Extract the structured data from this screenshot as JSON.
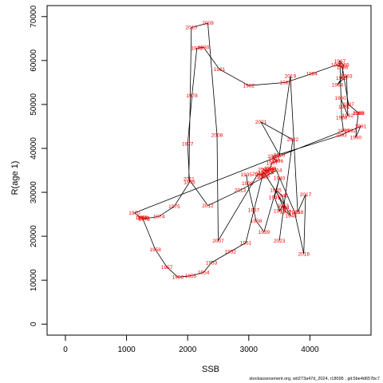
{
  "chart_data": {
    "type": "line",
    "title": "",
    "xlabel": "SSB",
    "ylabel": "R(age 1)",
    "xlim": [
      -300,
      5000
    ],
    "ylim": [
      -2500,
      72500
    ],
    "xticks": [
      0,
      1000,
      2000,
      3000,
      4000
    ],
    "yticks": [
      0,
      10000,
      20000,
      30000,
      40000,
      50000,
      60000,
      70000
    ],
    "grid": false,
    "colors": {
      "line": "#000000",
      "labels": "#ff0000"
    },
    "series": [
      {
        "points": [
          {
            "year": "1960",
            "x": 4500,
            "y": 51500
          },
          {
            "year": "1961",
            "x": 4560,
            "y": 49500
          },
          {
            "year": "1962",
            "x": 4620,
            "y": 47500
          },
          {
            "year": "1963",
            "x": 4600,
            "y": 56500
          },
          {
            "year": "1964",
            "x": 4450,
            "y": 54500
          },
          {
            "year": "1965",
            "x": 4520,
            "y": 56000
          },
          {
            "year": "1966",
            "x": 4550,
            "y": 59000
          },
          {
            "year": "1967",
            "x": 4490,
            "y": 59800
          },
          {
            "year": "1968",
            "x": 4520,
            "y": 47000
          },
          {
            "year": "1969",
            "x": 4550,
            "y": 44000
          },
          {
            "year": "1970",
            "x": 1130,
            "y": 25300
          },
          {
            "year": "1971",
            "x": 1240,
            "y": 24200
          },
          {
            "year": "1972",
            "x": 1280,
            "y": 24100
          },
          {
            "year": "1973",
            "x": 1290,
            "y": 24000
          },
          {
            "year": "1974",
            "x": 1530,
            "y": 24500
          },
          {
            "year": "1975",
            "x": 1780,
            "y": 26800
          },
          {
            "year": "1976",
            "x": 2030,
            "y": 32300
          },
          {
            "year": "1977",
            "x": 2000,
            "y": 41000
          },
          {
            "year": "1978",
            "x": 2070,
            "y": 52000
          },
          {
            "year": "1979",
            "x": 2150,
            "y": 62800
          },
          {
            "year": "1980",
            "x": 2260,
            "y": 63000
          },
          {
            "year": "1981",
            "x": 2520,
            "y": 58000
          },
          {
            "year": "1982",
            "x": 3000,
            "y": 54300
          },
          {
            "year": "1983",
            "x": 3600,
            "y": 55000
          },
          {
            "year": "1984",
            "x": 4030,
            "y": 57000
          },
          {
            "year": "1985",
            "x": 4440,
            "y": 59000
          },
          {
            "year": "1986",
            "x": 4530,
            "y": 58500
          },
          {
            "year": "1987",
            "x": 4630,
            "y": 50000
          },
          {
            "year": "1988",
            "x": 4800,
            "y": 48000
          },
          {
            "year": "1989",
            "x": 4790,
            "y": 48000
          },
          {
            "year": "1990",
            "x": 4750,
            "y": 42500
          },
          {
            "year": "1991",
            "x": 4830,
            "y": 45000
          },
          {
            "year": "1992",
            "x": 4660,
            "y": 44000
          },
          {
            "year": "1993",
            "x": 4510,
            "y": 43000
          },
          {
            "year": "1994",
            "x": 3400,
            "y": 38200
          },
          {
            "year": "1995",
            "x": 3420,
            "y": 37500
          },
          {
            "year": "1996",
            "x": 3470,
            "y": 37100
          },
          {
            "year": "1997",
            "x": 3380,
            "y": 36700
          },
          {
            "year": "1998",
            "x": 3350,
            "y": 35500
          },
          {
            "year": "1999",
            "x": 3360,
            "y": 35200
          },
          {
            "year": "2000",
            "x": 3300,
            "y": 35000
          },
          {
            "year": "2001",
            "x": 3330,
            "y": 34700
          },
          {
            "year": "2002",
            "x": 3240,
            "y": 35200
          },
          {
            "year": "2003",
            "x": 3300,
            "y": 34500
          },
          {
            "year": "2004",
            "x": 3200,
            "y": 34000
          },
          {
            "year": "2005",
            "x": 3250,
            "y": 33800
          },
          {
            "year": "2006",
            "x": 3150,
            "y": 34200
          },
          {
            "year": "2007",
            "x": 2500,
            "y": 19000
          },
          {
            "year": "2008",
            "x": 2480,
            "y": 43000
          },
          {
            "year": "2009",
            "x": 2330,
            "y": 68500
          },
          {
            "year": "2010",
            "x": 2060,
            "y": 67500
          },
          {
            "year": "2011",
            "x": 2020,
            "y": 33000
          },
          {
            "year": "2012",
            "x": 2330,
            "y": 27000
          },
          {
            "year": "2013",
            "x": 2860,
            "y": 30500
          },
          {
            "year": "2014",
            "x": 3450,
            "y": 35000
          },
          {
            "year": "2015",
            "x": 3750,
            "y": 25500
          },
          {
            "year": "2016",
            "x": 3900,
            "y": 16000
          },
          {
            "year": "2017",
            "x": 3930,
            "y": 29500
          },
          {
            "year": "2018",
            "x": 3800,
            "y": 25500
          },
          {
            "year": "2019",
            "x": 3680,
            "y": 56500
          },
          {
            "year": "2020",
            "x": 3500,
            "y": 38500
          },
          {
            "year": "2021",
            "x": 3200,
            "y": 46000
          },
          {
            "year": "2022",
            "x": 3720,
            "y": 42000
          },
          {
            "year": "2023",
            "x": 3500,
            "y": 19000
          }
        ]
      },
      {
        "points": [
          {
            "year": "1935",
            "x": 2960,
            "y": 34000
          },
          {
            "year": "1936",
            "x": 2980,
            "y": 32000
          },
          {
            "year": "1937",
            "x": 3080,
            "y": 26000
          },
          {
            "year": "1938",
            "x": 3120,
            "y": 23500
          },
          {
            "year": "1939",
            "x": 3250,
            "y": 21000
          },
          {
            "year": "1940",
            "x": 3500,
            "y": 33200
          },
          {
            "year": "1941",
            "x": 3420,
            "y": 28900
          },
          {
            "year": "1942",
            "x": 3500,
            "y": 25800
          },
          {
            "year": "1943",
            "x": 3560,
            "y": 27000
          },
          {
            "year": "1944",
            "x": 3570,
            "y": 26500
          },
          {
            "year": "1945",
            "x": 3440,
            "y": 30500
          },
          {
            "year": "1946",
            "x": 3550,
            "y": 29200
          },
          {
            "year": "1947",
            "x": 3600,
            "y": 25600
          },
          {
            "year": "1948",
            "x": 3690,
            "y": 24700
          },
          {
            "year": "1949",
            "x": 3250,
            "y": 34500
          },
          {
            "year": "1950",
            "x": 3220,
            "y": 33500
          },
          {
            "year": "1951",
            "x": 2950,
            "y": 18500
          },
          {
            "year": "1952",
            "x": 2700,
            "y": 16500
          },
          {
            "year": "1953",
            "x": 2390,
            "y": 14000
          },
          {
            "year": "1954",
            "x": 2260,
            "y": 11800
          },
          {
            "year": "1955",
            "x": 2050,
            "y": 11000
          },
          {
            "year": "1956",
            "x": 1840,
            "y": 10700
          },
          {
            "year": "1957",
            "x": 1660,
            "y": 13000
          },
          {
            "year": "1958",
            "x": 1470,
            "y": 17000
          },
          {
            "year": "1959",
            "x": 1260,
            "y": 24200
          }
        ]
      }
    ]
  },
  "footer": {
    "text": "stockassessment.org, wit273a47d_2024, r18095 , git:5be4d657bc7"
  }
}
